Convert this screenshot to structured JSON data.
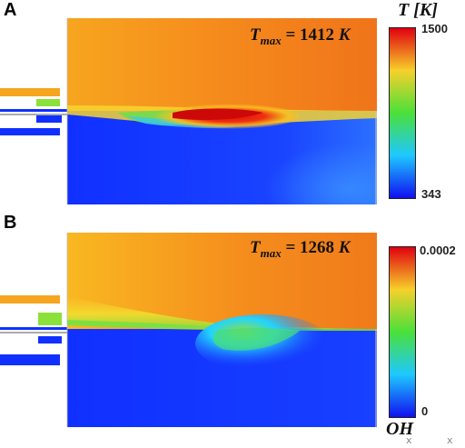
{
  "panelA": {
    "letter": "A",
    "tmax_symbol": "T",
    "tmax_sub": "max",
    "tmax_eq": " = 1412 ",
    "tmax_unit": "K",
    "colorbar_title": "T [K]",
    "colorbar_max": "1500",
    "colorbar_min": "343"
  },
  "panelB": {
    "letter": "B",
    "tmax_symbol": "T",
    "tmax_sub": "max",
    "tmax_eq": " = 1268 ",
    "tmax_unit": "K",
    "colorbar_title": "OH",
    "colorbar_max": "0.0002",
    "colorbar_min": "0"
  },
  "footer_marks": [
    "x",
    "x"
  ],
  "colors": {
    "hot": "#f05a10",
    "warm": "#f39c1e",
    "cold": "#1030ff",
    "green": "#7ee03a"
  }
}
